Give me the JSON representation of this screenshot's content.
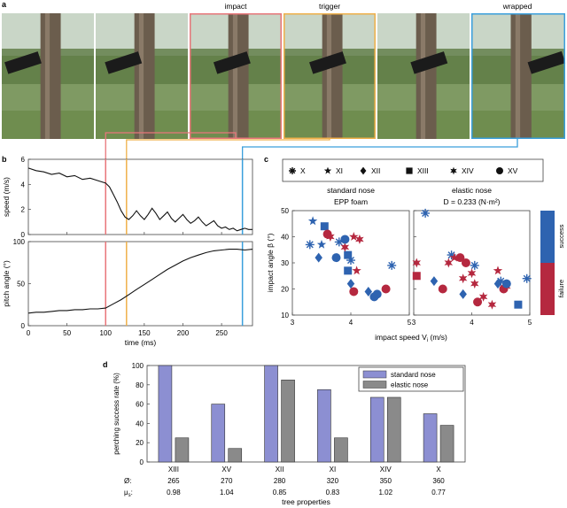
{
  "panels": {
    "a": "a",
    "b": "b",
    "c": "c",
    "d": "d"
  },
  "photo_labels": [
    "impact",
    "trigger",
    "wrapped"
  ],
  "marker_colors": {
    "impact": "#e8767a",
    "trigger": "#efb04a",
    "wrapped": "#3a9fdc"
  },
  "colors": {
    "success": "#2e63b0",
    "failure": "#b5283f",
    "standard": "#8c8fd2",
    "elastic": "#8a8a8a"
  },
  "chart_data": [
    {
      "id": "speed",
      "type": "line",
      "ylabel": "speed (m/s)",
      "ylim": [
        0,
        6
      ],
      "yticks": [
        "0",
        "2",
        "4",
        "6"
      ],
      "xlim": [
        0,
        290
      ],
      "x": [
        0,
        10,
        20,
        30,
        40,
        50,
        60,
        70,
        80,
        90,
        100,
        105,
        110,
        115,
        120,
        125,
        130,
        135,
        140,
        145,
        150,
        155,
        160,
        165,
        170,
        175,
        180,
        185,
        190,
        195,
        200,
        205,
        210,
        215,
        220,
        225,
        230,
        235,
        240,
        245,
        250,
        255,
        260,
        265,
        270,
        275,
        280,
        285,
        290
      ],
      "y": [
        5.3,
        5.1,
        5.0,
        4.8,
        4.9,
        4.6,
        4.7,
        4.4,
        4.5,
        4.3,
        4.1,
        3.8,
        3.2,
        2.6,
        1.9,
        1.4,
        1.2,
        1.5,
        1.9,
        1.5,
        1.2,
        1.6,
        2.1,
        1.7,
        1.2,
        1.5,
        1.8,
        1.3,
        1.0,
        1.3,
        1.6,
        1.2,
        0.9,
        1.1,
        1.4,
        1.0,
        0.7,
        0.9,
        1.1,
        0.7,
        0.5,
        0.6,
        0.4,
        0.5,
        0.3,
        0.4,
        0.5,
        0.4,
        0.4
      ],
      "markers": [
        {
          "event": "impact",
          "x": 100
        },
        {
          "event": "trigger",
          "x": 127
        },
        {
          "event": "wrapped",
          "x": 277
        }
      ]
    },
    {
      "id": "pitch",
      "type": "line",
      "xlabel": "time (ms)",
      "ylabel": "pitch angle (°)",
      "ylim": [
        0,
        100
      ],
      "yticks": [
        "0",
        "50",
        "100"
      ],
      "xlim": [
        0,
        290
      ],
      "xticks": [
        "0",
        "50",
        "100",
        "150",
        "200",
        "250"
      ],
      "x": [
        0,
        10,
        20,
        30,
        40,
        50,
        60,
        70,
        80,
        90,
        100,
        110,
        120,
        130,
        140,
        150,
        160,
        170,
        180,
        190,
        200,
        210,
        220,
        230,
        240,
        250,
        260,
        270,
        280,
        290
      ],
      "y": [
        15,
        16,
        16,
        17,
        18,
        18,
        19,
        19,
        20,
        20,
        21,
        26,
        31,
        37,
        43,
        49,
        55,
        61,
        67,
        72,
        77,
        81,
        84,
        87,
        89,
        90,
        91,
        91,
        90,
        91
      ]
    },
    {
      "id": "scatter",
      "type": "scatter",
      "legend": [
        {
          "symbol": "asterisk",
          "label": "X"
        },
        {
          "symbol": "star",
          "label": "XI"
        },
        {
          "symbol": "diamond",
          "label": "XII"
        },
        {
          "symbol": "square",
          "label": "XIII"
        },
        {
          "symbol": "sixstar",
          "label": "XIV"
        },
        {
          "symbol": "circle",
          "label": "XV"
        }
      ],
      "xlabel": "impact speed V",
      "xlabel_sub": "i",
      "xlabel_unit": " (m/s)",
      "ylabel": "impact angle β (°)",
      "xlim": [
        3,
        5
      ],
      "ylim": [
        10,
        50
      ],
      "xticks": [
        "3",
        "4",
        "5"
      ],
      "yticks": [
        "10",
        "20",
        "30",
        "40",
        "50"
      ],
      "colorbar": {
        "top": "success",
        "bottom": "failure"
      },
      "subplots": [
        {
          "title": "standard nose",
          "subtitle": "EPP foam",
          "points": [
            {
              "s": "asterisk",
              "o": "success",
              "x": 3.3,
              "y": 37
            },
            {
              "s": "asterisk",
              "o": "success",
              "x": 3.8,
              "y": 38
            },
            {
              "s": "asterisk",
              "o": "success",
              "x": 4.7,
              "y": 29
            },
            {
              "s": "asterisk",
              "o": "success",
              "x": 4.0,
              "y": 31
            },
            {
              "s": "star",
              "o": "success",
              "x": 3.35,
              "y": 46
            },
            {
              "s": "star",
              "o": "success",
              "x": 3.5,
              "y": 37
            },
            {
              "s": "star",
              "o": "failure",
              "x": 4.05,
              "y": 40
            },
            {
              "s": "star",
              "o": "failure",
              "x": 4.1,
              "y": 27
            },
            {
              "s": "diamond",
              "o": "success",
              "x": 3.45,
              "y": 32
            },
            {
              "s": "diamond",
              "o": "success",
              "x": 4.0,
              "y": 22
            },
            {
              "s": "diamond",
              "o": "success",
              "x": 4.3,
              "y": 19
            },
            {
              "s": "square",
              "o": "success",
              "x": 3.55,
              "y": 44
            },
            {
              "s": "square",
              "o": "success",
              "x": 3.95,
              "y": 33
            },
            {
              "s": "square",
              "o": "success",
              "x": 3.95,
              "y": 27
            },
            {
              "s": "sixstar",
              "o": "failure",
              "x": 3.65,
              "y": 40
            },
            {
              "s": "sixstar",
              "o": "failure",
              "x": 3.9,
              "y": 36
            },
            {
              "s": "sixstar",
              "o": "failure",
              "x": 4.15,
              "y": 39
            },
            {
              "s": "circle",
              "o": "success",
              "x": 3.75,
              "y": 32
            },
            {
              "s": "circle",
              "o": "success",
              "x": 3.9,
              "y": 39
            },
            {
              "s": "circle",
              "o": "success",
              "x": 4.4,
              "y": 17
            },
            {
              "s": "circle",
              "o": "success",
              "x": 4.45,
              "y": 18
            },
            {
              "s": "circle",
              "o": "failure",
              "x": 3.6,
              "y": 41
            },
            {
              "s": "circle",
              "o": "failure",
              "x": 4.05,
              "y": 19
            },
            {
              "s": "circle",
              "o": "failure",
              "x": 4.6,
              "y": 20
            }
          ]
        },
        {
          "title": "elastic nose",
          "subtitle": "D = 0.233 (N·m²)",
          "points": [
            {
              "s": "asterisk",
              "o": "success",
              "x": 3.2,
              "y": 49
            },
            {
              "s": "asterisk",
              "o": "success",
              "x": 3.65,
              "y": 33
            },
            {
              "s": "asterisk",
              "o": "success",
              "x": 4.05,
              "y": 29
            },
            {
              "s": "asterisk",
              "o": "success",
              "x": 4.5,
              "y": 23
            },
            {
              "s": "asterisk",
              "o": "success",
              "x": 4.95,
              "y": 24
            },
            {
              "s": "star",
              "o": "failure",
              "x": 3.7,
              "y": 32
            },
            {
              "s": "star",
              "o": "failure",
              "x": 4.45,
              "y": 27
            },
            {
              "s": "diamond",
              "o": "success",
              "x": 3.35,
              "y": 23
            },
            {
              "s": "diamond",
              "o": "success",
              "x": 3.85,
              "y": 18
            },
            {
              "s": "diamond",
              "o": "success",
              "x": 4.45,
              "y": 22
            },
            {
              "s": "square",
              "o": "failure",
              "x": 3.05,
              "y": 25
            },
            {
              "s": "square",
              "o": "success",
              "x": 4.8,
              "y": 14
            },
            {
              "s": "sixstar",
              "o": "failure",
              "x": 3.05,
              "y": 30
            },
            {
              "s": "sixstar",
              "o": "failure",
              "x": 3.6,
              "y": 30
            },
            {
              "s": "sixstar",
              "o": "failure",
              "x": 3.85,
              "y": 24
            },
            {
              "s": "sixstar",
              "o": "failure",
              "x": 4.0,
              "y": 26
            },
            {
              "s": "sixstar",
              "o": "failure",
              "x": 4.05,
              "y": 22
            },
            {
              "s": "sixstar",
              "o": "failure",
              "x": 4.2,
              "y": 17
            },
            {
              "s": "sixstar",
              "o": "failure",
              "x": 4.35,
              "y": 14
            },
            {
              "s": "sixstar",
              "o": "failure",
              "x": 4.6,
              "y": 21
            },
            {
              "s": "circle",
              "o": "failure",
              "x": 3.5,
              "y": 20
            },
            {
              "s": "circle",
              "o": "failure",
              "x": 3.8,
              "y": 32
            },
            {
              "s": "circle",
              "o": "failure",
              "x": 3.9,
              "y": 30
            },
            {
              "s": "circle",
              "o": "failure",
              "x": 4.1,
              "y": 15
            },
            {
              "s": "circle",
              "o": "failure",
              "x": 4.55,
              "y": 20
            },
            {
              "s": "circle",
              "o": "success",
              "x": 4.6,
              "y": 22
            }
          ]
        }
      ]
    },
    {
      "id": "success_rate",
      "type": "bar",
      "ylabel": "perching success rate (%)",
      "ylim": [
        0,
        100
      ],
      "yticks": [
        "0",
        "20",
        "40",
        "60",
        "80",
        "100"
      ],
      "categories": [
        "XIII",
        "XV",
        "XII",
        "XI",
        "XIV",
        "X"
      ],
      "series": [
        {
          "name": "standard nose",
          "values": [
            100,
            60,
            100,
            75,
            67,
            50
          ]
        },
        {
          "name": "elastic nose",
          "values": [
            25,
            14,
            85,
            25,
            67,
            38
          ]
        }
      ],
      "diameter_label": "Ø:",
      "diameters": [
        "265",
        "270",
        "280",
        "320",
        "350",
        "360"
      ],
      "friction_label": "μ",
      "friction_sub": "s",
      "friction": [
        "0.98",
        "1.04",
        "0.85",
        "0.83",
        "1.02",
        "0.77"
      ],
      "xlabel": "tree properties"
    }
  ]
}
